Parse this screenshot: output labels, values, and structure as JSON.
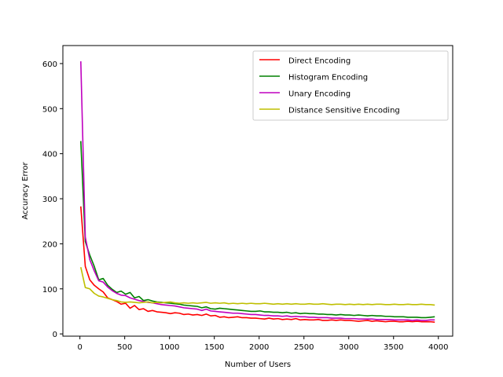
{
  "chart_data": {
    "type": "line",
    "title": "",
    "xlabel": "Number of Users",
    "ylabel": "Accuracy Error",
    "xlim": [
      -190,
      4160
    ],
    "ylim": [
      -5,
      640
    ],
    "xticks": [
      0,
      500,
      1000,
      1500,
      2000,
      2500,
      3000,
      3500,
      4000
    ],
    "yticks": [
      0,
      100,
      200,
      300,
      400,
      500,
      600
    ],
    "grid": false,
    "legend_position": "top-right",
    "x": [
      10,
      60,
      110,
      160,
      210,
      260,
      310,
      360,
      410,
      460,
      510,
      560,
      610,
      660,
      710,
      760,
      810,
      860,
      910,
      960,
      1010,
      1060,
      1110,
      1160,
      1210,
      1260,
      1310,
      1360,
      1410,
      1460,
      1510,
      1560,
      1610,
      1660,
      1710,
      1760,
      1810,
      1860,
      1910,
      1960,
      2010,
      2060,
      2110,
      2160,
      2210,
      2260,
      2310,
      2360,
      2410,
      2460,
      2510,
      2560,
      2610,
      2660,
      2710,
      2760,
      2810,
      2860,
      2910,
      2960,
      3010,
      3060,
      3110,
      3160,
      3210,
      3260,
      3310,
      3360,
      3410,
      3460,
      3510,
      3560,
      3610,
      3660,
      3710,
      3760,
      3810,
      3860,
      3910,
      3960
    ],
    "series": [
      {
        "name": "Direct Encoding",
        "color": "#ff0000",
        "values": [
          283,
          150,
          120,
          108,
          100,
          93,
          80,
          76,
          72,
          66,
          68,
          57,
          63,
          54,
          56,
          50,
          52,
          49,
          48,
          47,
          45,
          47,
          46,
          43,
          44,
          42,
          43,
          41,
          44,
          40,
          41,
          37,
          38,
          36,
          37,
          38,
          36,
          36,
          35,
          35,
          34,
          33,
          35,
          33,
          34,
          32,
          33,
          32,
          34,
          31,
          32,
          31,
          31,
          32,
          30,
          30,
          31,
          30,
          31,
          30,
          30,
          29,
          28,
          29,
          30,
          28,
          29,
          28,
          27,
          28,
          28,
          27,
          27,
          28,
          27,
          28,
          27,
          27,
          27,
          26
        ]
      },
      {
        "name": "Histogram Encoding",
        "color": "#008000",
        "values": [
          428,
          205,
          175,
          150,
          120,
          123,
          108,
          99,
          92,
          95,
          88,
          92,
          80,
          83,
          74,
          76,
          73,
          71,
          70,
          69,
          68,
          67,
          66,
          64,
          63,
          62,
          61,
          58,
          60,
          56,
          55,
          57,
          56,
          55,
          54,
          53,
          52,
          51,
          50,
          50,
          51,
          49,
          49,
          48,
          48,
          47,
          48,
          46,
          47,
          45,
          46,
          45,
          45,
          44,
          44,
          43,
          43,
          42,
          43,
          42,
          42,
          41,
          42,
          41,
          40,
          41,
          40,
          40,
          39,
          39,
          38,
          38,
          38,
          37,
          37,
          37,
          36,
          36,
          37,
          38
        ]
      },
      {
        "name": "Unary Encoding",
        "color": "#bf00bf",
        "values": [
          605,
          215,
          165,
          140,
          118,
          115,
          104,
          96,
          90,
          86,
          85,
          80,
          77,
          74,
          72,
          70,
          69,
          67,
          65,
          64,
          63,
          62,
          60,
          58,
          57,
          56,
          55,
          52,
          55,
          51,
          50,
          49,
          48,
          47,
          46,
          46,
          45,
          44,
          43,
          43,
          42,
          41,
          41,
          40,
          40,
          39,
          40,
          38,
          39,
          38,
          38,
          37,
          37,
          36,
          36,
          36,
          35,
          35,
          35,
          34,
          34,
          34,
          33,
          33,
          33,
          33,
          32,
          32,
          32,
          32,
          31,
          31,
          31,
          31,
          30,
          31,
          30,
          30,
          31,
          31
        ]
      },
      {
        "name": "Distance Sensitive Encoding",
        "color": "#bfbf00",
        "values": [
          148,
          103,
          100,
          90,
          84,
          82,
          79,
          76,
          74,
          71,
          70,
          71,
          70,
          69,
          70,
          71,
          69,
          70,
          69,
          70,
          71,
          69,
          68,
          69,
          68,
          69,
          68,
          69,
          70,
          68,
          69,
          68,
          69,
          67,
          68,
          67,
          68,
          67,
          68,
          67,
          67,
          68,
          67,
          66,
          67,
          66,
          67,
          66,
          67,
          66,
          66,
          67,
          66,
          66,
          67,
          66,
          65,
          66,
          66,
          65,
          66,
          65,
          66,
          65,
          66,
          65,
          66,
          66,
          65,
          65,
          66,
          65,
          65,
          66,
          65,
          65,
          66,
          65,
          65,
          64
        ]
      }
    ]
  }
}
